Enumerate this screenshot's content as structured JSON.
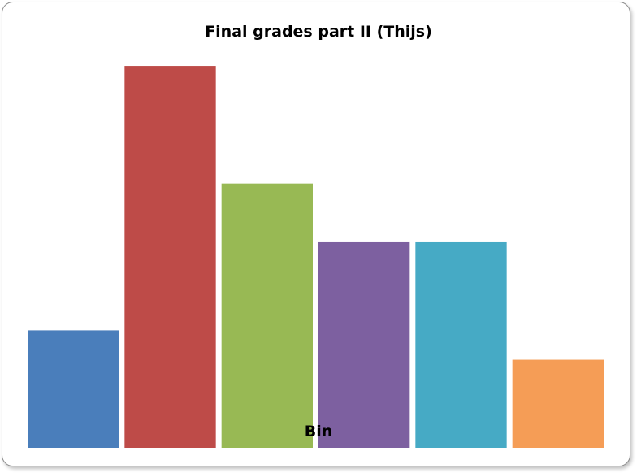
{
  "chart_data": {
    "type": "bar",
    "title": "Final grades part II (Thijs)",
    "xlabel": "Bin",
    "ylabel": "",
    "categories": [
      "",
      "",
      "",
      "",
      "",
      ""
    ],
    "values": [
      4,
      13,
      9,
      7,
      7,
      3
    ],
    "ylim": [
      0,
      14.8
    ],
    "colors": [
      "#4a7ebb",
      "#be4b48",
      "#98b954",
      "#7d60a0",
      "#46aac5",
      "#f59d56"
    ],
    "grid": false,
    "legend": "none"
  }
}
